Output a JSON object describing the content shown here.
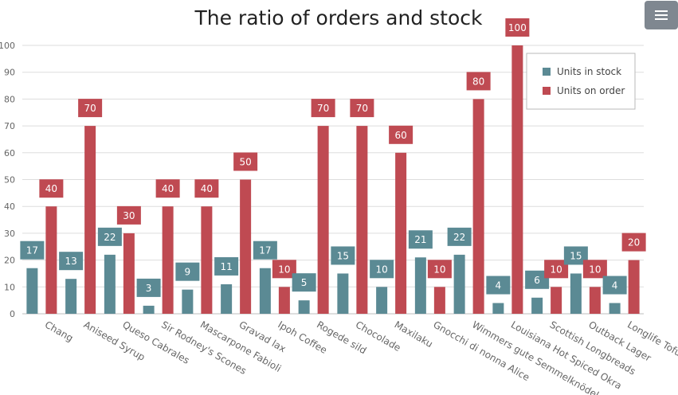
{
  "chart_data": {
    "type": "bar",
    "title": "The ratio of orders and stock",
    "categories": [
      "Chang",
      "Aniseed Syrup",
      "Queso Cabrales",
      "Sir Rodney's Scones",
      "Mascarpone Fabioli",
      "Gravad lax",
      "Ipoh Coffee",
      "Rogede sild",
      "Chocolade",
      "Maxilaku",
      "Gnocchi di nonna Alice",
      "Wimmers gute Semmelknödel",
      "Louisiana Hot Spiced Okra",
      "Scottish Longbreads",
      "Outback Lager",
      "Longlife Tofu"
    ],
    "series": [
      {
        "name": "Units in stock",
        "color": "#5b8a94",
        "values": [
          17,
          13,
          22,
          3,
          9,
          11,
          17,
          5,
          15,
          10,
          21,
          22,
          4,
          6,
          15,
          4
        ]
      },
      {
        "name": "Units on order",
        "color": "#bf4a52",
        "values": [
          40,
          70,
          30,
          40,
          40,
          50,
          10,
          70,
          70,
          60,
          10,
          80,
          100,
          10,
          10,
          20
        ]
      }
    ],
    "yticks": [
      0,
      10,
      20,
      30,
      40,
      50,
      60,
      70,
      80,
      90,
      100
    ],
    "ylim": [
      0,
      100
    ],
    "grid": true,
    "legend_position": "top-right",
    "xlabel": "",
    "ylabel": ""
  },
  "menu": {
    "icon": "hamburger-menu-icon"
  }
}
